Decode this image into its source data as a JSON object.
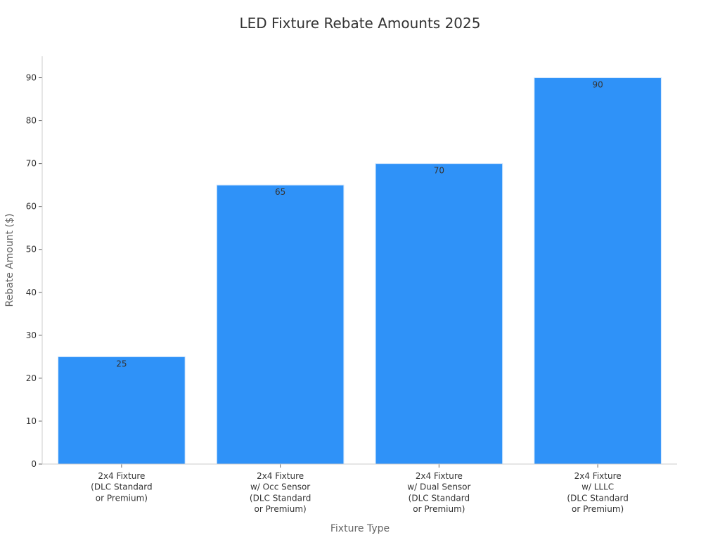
{
  "chart_data": {
    "type": "bar",
    "title": "LED Fixture Rebate Amounts 2025",
    "xlabel": "Fixture Type",
    "ylabel": "Rebate Amount ($)",
    "categories": [
      [
        "2x4 Fixture",
        "(DLC Standard",
        "or Premium)"
      ],
      [
        "2x4 Fixture",
        "w/ Occ Sensor",
        "(DLC Standard",
        "or Premium)"
      ],
      [
        "2x4 Fixture",
        "w/ Dual Sensor",
        "(DLC Standard",
        "or Premium)"
      ],
      [
        "2x4 Fixture",
        "w/ LLLC",
        "(DLC Standard",
        "or Premium)"
      ]
    ],
    "values": [
      25,
      65,
      70,
      90
    ],
    "ylim": [
      0,
      95
    ],
    "yticks": [
      0,
      10,
      20,
      30,
      40,
      50,
      60,
      70,
      80,
      90
    ],
    "grid": false,
    "bar_color": "#2f92f8"
  }
}
